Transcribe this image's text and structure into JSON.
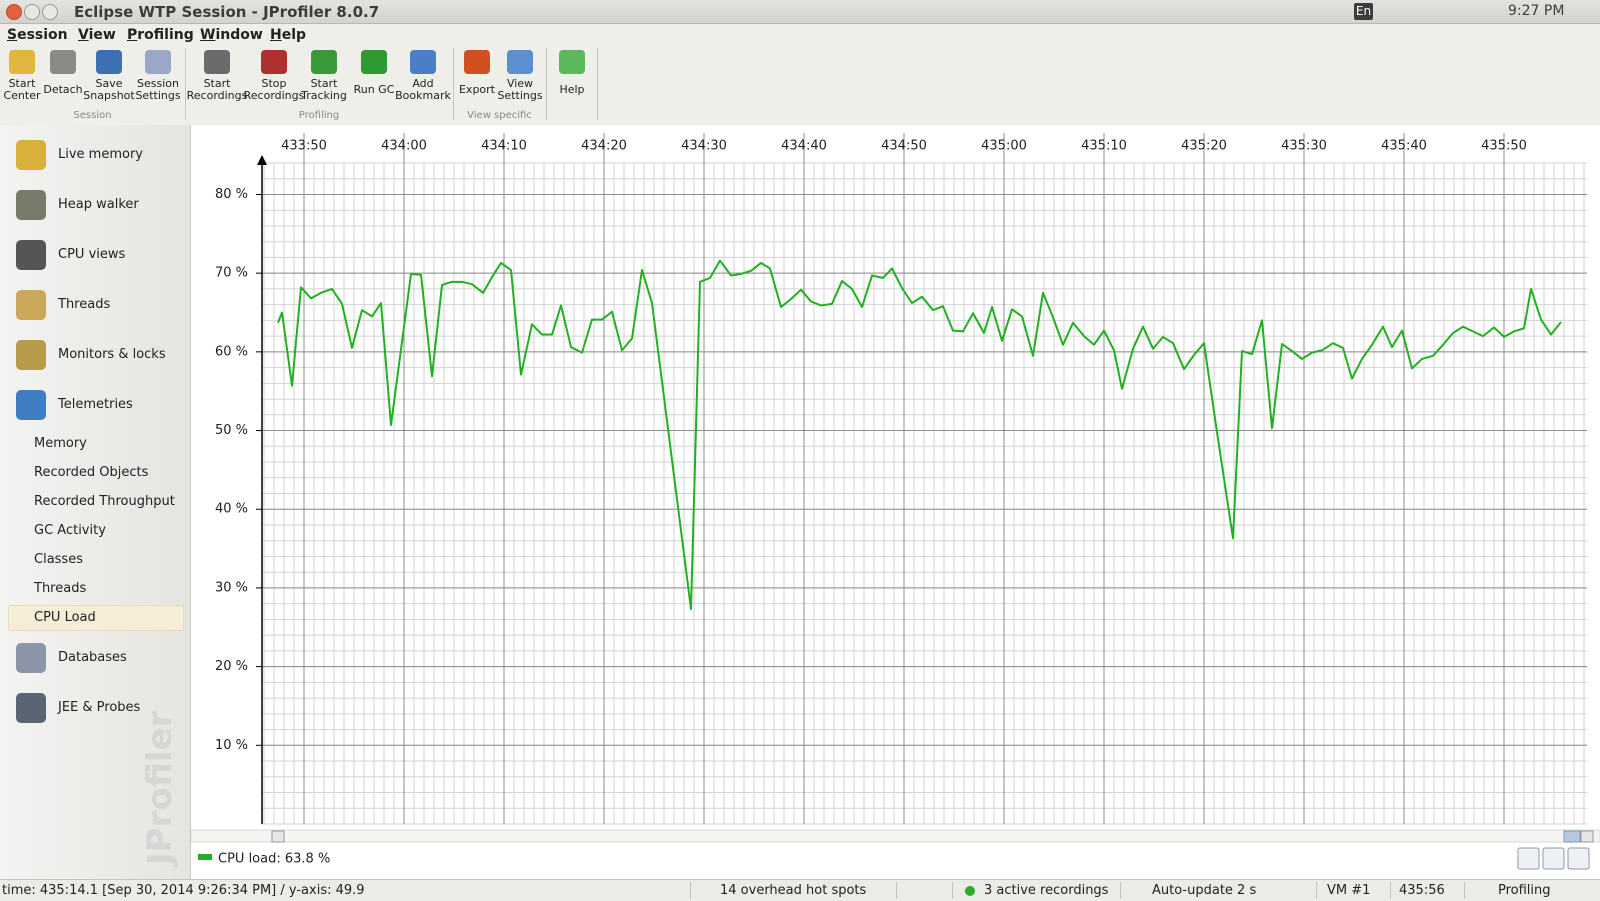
{
  "window": {
    "title": "Eclipse WTP Session - JProfiler 8.0.7"
  },
  "tray": {
    "input": "En",
    "clock": "9:27 PM"
  },
  "menu": [
    "Session",
    "View",
    "Profiling",
    "Window",
    "Help"
  ],
  "toolbar": [
    {
      "label": "Session",
      "buttons": [
        [
          "Start",
          "Center"
        ],
        [
          "Detach"
        ],
        [
          "Save",
          "Snapshot"
        ],
        [
          "Session",
          "Settings"
        ]
      ]
    },
    {
      "label": "Profiling",
      "buttons": [
        [
          "Start",
          "Recordings"
        ],
        [
          "Stop",
          "Recordings"
        ],
        [
          "Start",
          "Tracking"
        ],
        [
          "Run GC"
        ],
        [
          "Add",
          "Bookmark"
        ]
      ]
    },
    {
      "label": "View specific",
      "buttons": [
        [
          "Export"
        ],
        [
          "View",
          "Settings"
        ]
      ]
    },
    {
      "buttons": [
        [
          "Help"
        ]
      ]
    }
  ],
  "sidebar": {
    "items": [
      "Live memory",
      "Heap walker",
      "CPU views",
      "Threads",
      "Monitors & locks",
      "Telemetries"
    ],
    "telemetries": [
      "Memory",
      "Recorded Objects",
      "Recorded Throughput",
      "GC Activity",
      "Classes",
      "Threads",
      "CPU Load"
    ],
    "selected": 6,
    "more_items": [
      "Databases",
      "JEE & Probes"
    ],
    "watermark": "JProfiler"
  },
  "chart_data": {
    "type": "line",
    "x": [
      26027.4,
      26027.8,
      26028.8,
      26029.7,
      26030.7,
      26031.7,
      26032.8,
      26033.8,
      26034.8,
      26035.8,
      26036.8,
      26037.7,
      26038.7,
      26040.7,
      26041.7,
      26042.8,
      26043.8,
      26044.8,
      26045.8,
      26046.8,
      26047.9,
      26048.9,
      26049.7,
      26050.7,
      26051.7,
      26052.8,
      26053.8,
      26054.8,
      26055.7,
      26056.7,
      26057.8,
      26058.8,
      26059.8,
      26060.8,
      26061.8,
      26062.8,
      26063.8,
      26064.8,
      26068.7,
      26069.6,
      26070.6,
      26071.6,
      26072.7,
      26073.7,
      26074.7,
      26075.7,
      26076.6,
      26077.7,
      26078.7,
      26079.7,
      26080.7,
      26081.7,
      26082.8,
      26083.8,
      26084.8,
      26085.8,
      26086.8,
      26087.9,
      26088.8,
      26089.8,
      26090.8,
      26091.8,
      26092.9,
      26093.9,
      26094.9,
      26095.9,
      26096.9,
      26098.0,
      26098.8,
      26099.8,
      26100.8,
      26101.8,
      26102.9,
      26103.9,
      26104.9,
      26105.9,
      26106.9,
      26108.0,
      26109.0,
      26110.0,
      26111.0,
      26111.8,
      26112.9,
      26113.9,
      26114.9,
      26115.9,
      26116.9,
      26118.0,
      26119.0,
      26120.0,
      26121.3,
      26122.9,
      26123.8,
      26124.8,
      26125.8,
      26126.8,
      26127.8,
      26128.8,
      26129.8,
      26130.8,
      26131.8,
      26132.9,
      26133.9,
      26134.8,
      26135.8,
      26136.8,
      26137.9,
      26138.8,
      26139.8,
      26140.8,
      26141.8,
      26142.9,
      26143.9,
      26144.9,
      26145.9,
      26146.9,
      26147.9,
      26149.0,
      26150.0,
      26151.0,
      26152.0,
      26152.7,
      26153.7,
      26154.7,
      26155.7
    ],
    "series": [
      {
        "name": "CPU load: 63.8 %",
        "color": "#22b022",
        "values": [
          63.7,
          65.0,
          55.7,
          68.2,
          66.8,
          67.5,
          68.0,
          66.1,
          60.5,
          65.3,
          64.5,
          66.2,
          50.7,
          69.9,
          69.8,
          56.9,
          68.5,
          68.9,
          68.9,
          68.6,
          67.5,
          69.7,
          71.3,
          70.4,
          57.1,
          63.5,
          62.2,
          62.2,
          65.9,
          60.6,
          59.9,
          64.1,
          64.1,
          65.1,
          60.2,
          61.7,
          70.4,
          66.2,
          27.3,
          68.9,
          69.4,
          71.6,
          69.7,
          69.9,
          70.3,
          71.3,
          70.6,
          65.7,
          66.7,
          67.9,
          66.4,
          65.9,
          66.1,
          69.0,
          68.0,
          65.7,
          69.7,
          69.4,
          70.6,
          68.1,
          66.2,
          67.0,
          65.3,
          65.8,
          62.7,
          62.6,
          64.9,
          62.4,
          65.7,
          61.4,
          65.4,
          64.5,
          59.5,
          67.5,
          64.4,
          60.9,
          63.7,
          62.0,
          60.9,
          62.7,
          60.2,
          55.3,
          60.4,
          63.2,
          60.4,
          61.9,
          61.1,
          57.8,
          59.6,
          61.1,
          49.8,
          36.3,
          60.1,
          59.7,
          64.0,
          50.3,
          61.0,
          60.1,
          59.1,
          59.9,
          60.2,
          61.1,
          60.5,
          56.6,
          59.1,
          60.9,
          63.2,
          60.6,
          62.7,
          57.9,
          59.1,
          59.5,
          60.9,
          62.4,
          63.2,
          62.6,
          62.0,
          63.1,
          61.9,
          62.6,
          63.0,
          68.0,
          64.1,
          62.2,
          63.8
        ]
      }
    ],
    "xlim": [
      26025.8,
      26158.3
    ],
    "ylim": [
      0,
      84
    ],
    "xticks": [
      {
        "value": 26030,
        "label": "433:50"
      },
      {
        "value": 26040,
        "label": "434:00"
      },
      {
        "value": 26050,
        "label": "434:10"
      },
      {
        "value": 26060,
        "label": "434:20"
      },
      {
        "value": 26070,
        "label": "434:30"
      },
      {
        "value": 26080,
        "label": "434:40"
      },
      {
        "value": 26090,
        "label": "434:50"
      },
      {
        "value": 26100,
        "label": "435:00"
      },
      {
        "value": 26110,
        "label": "435:10"
      },
      {
        "value": 26120,
        "label": "435:20"
      },
      {
        "value": 26130,
        "label": "435:30"
      },
      {
        "value": 26140,
        "label": "435:40"
      },
      {
        "value": 26150,
        "label": "435:50"
      }
    ],
    "yticks": [
      {
        "value": 10,
        "label": "10 %"
      },
      {
        "value": 20,
        "label": "20 %"
      },
      {
        "value": 30,
        "label": "30 %"
      },
      {
        "value": 40,
        "label": "40 %"
      },
      {
        "value": 50,
        "label": "50 %"
      },
      {
        "value": 60,
        "label": "60 %"
      },
      {
        "value": 70,
        "label": "70 %"
      },
      {
        "value": 80,
        "label": "80 %"
      }
    ],
    "grid": true
  },
  "status_bar": {
    "position": "time: 435:14.1 [Sep 30, 2014 9:26:34 PM] / y-axis: 49.9",
    "hot_spots": "14 overhead hot spots",
    "recordings": "3 active recordings",
    "auto_update": "Auto-update 2 s",
    "vm": "VM #1",
    "time": "435:56",
    "mode": "Profiling"
  }
}
